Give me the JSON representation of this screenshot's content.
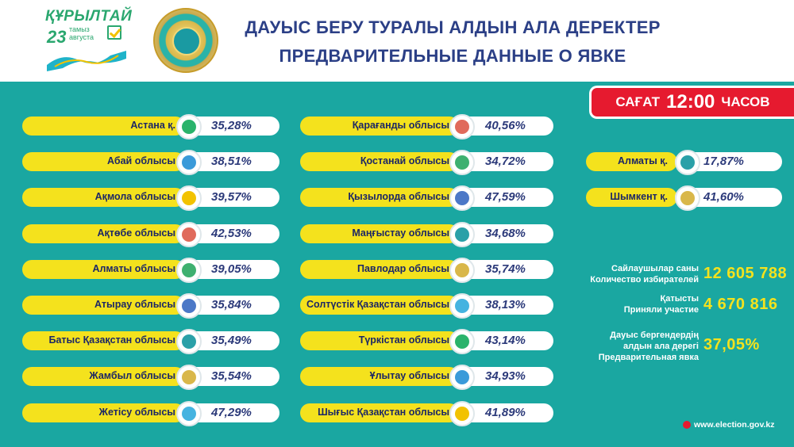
{
  "header": {
    "logo": {
      "title": "ҚҰРЫЛТАЙ",
      "day": "23",
      "month_kz": "тамыз",
      "month_ru": "августа"
    },
    "title_line1": "ДАУЫС БЕРУ ТУРАЛЫ АЛДЫН АЛА ДЕРЕКТЕР",
    "title_line2": "ПРЕДВАРИТЕЛЬНЫЕ ДАННЫЕ О ЯВКЕ"
  },
  "time_badge": {
    "prefix": "САҒАТ",
    "time": "12:00",
    "suffix": "ЧАСОВ"
  },
  "colors": {
    "background": "#1aa7a1",
    "pill": "#f4e21d",
    "badge": "#e61a2f",
    "title": "#2b3f86"
  },
  "regions_left": [
    {
      "name": "Астана қ.",
      "value": "35,28%"
    },
    {
      "name": "Абай облысы",
      "value": "38,51%"
    },
    {
      "name": "Ақмола облысы",
      "value": "39,57%"
    },
    {
      "name": "Ақтөбе облысы",
      "value": "42,53%"
    },
    {
      "name": "Алматы облысы",
      "value": "39,05%"
    },
    {
      "name": "Атырау облысы",
      "value": "35,84%"
    },
    {
      "name": "Батыс Қазақстан облысы",
      "value": "35,49%"
    },
    {
      "name": "Жамбыл облысы",
      "value": "35,54%"
    },
    {
      "name": "Жетісу облысы",
      "value": "47,29%"
    }
  ],
  "regions_middle": [
    {
      "name": "Қарағанды облысы",
      "value": "40,56%"
    },
    {
      "name": "Қостанай облысы",
      "value": "34,72%"
    },
    {
      "name": "Қызылорда облысы",
      "value": "47,59%"
    },
    {
      "name": "Маңғыстау облысы",
      "value": "34,68%"
    },
    {
      "name": "Павлодар облысы",
      "value": "35,74%"
    },
    {
      "name": "Солтүстік Қазақстан облысы",
      "value": "38,13%"
    },
    {
      "name": "Түркістан облысы",
      "value": "43,14%"
    },
    {
      "name": "Ұлытау облысы",
      "value": "34,93%"
    },
    {
      "name": "Шығыс Қазақстан облысы",
      "value": "41,89%"
    }
  ],
  "regions_right": [
    {
      "name": "Алматы қ.",
      "value": "17,87%"
    },
    {
      "name": "Шымкент қ.",
      "value": "41,60%"
    }
  ],
  "stats": {
    "voters_label_kz": "Сайлаушылар саны",
    "voters_label_ru": "Количество избирателей",
    "voters_value": "12 605 788",
    "participated_label_kz": "Қатысты",
    "participated_label_ru": "Приняли участие",
    "participated_value": "4 670 816",
    "turnout_label_kz1": "Дауыс бергендердің",
    "turnout_label_kz2": "алдын ала дерегі",
    "turnout_label_ru": "Предварительная явка",
    "turnout_value": "37,05%"
  },
  "footer": {
    "website": "www.election.gov.kz"
  }
}
